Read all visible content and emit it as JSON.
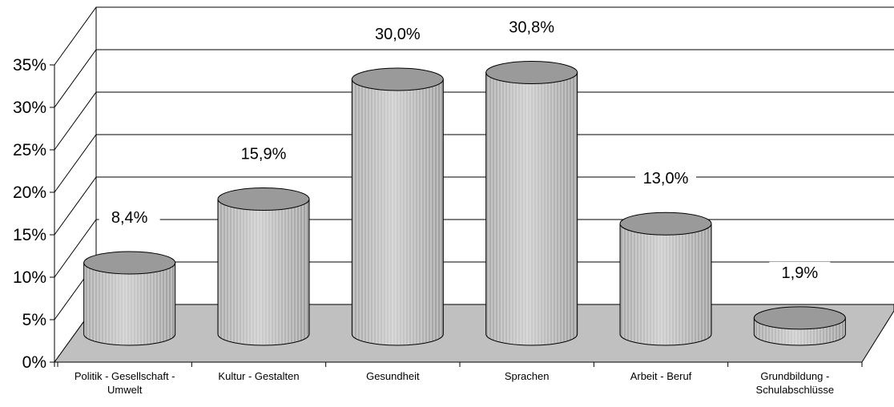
{
  "chart_data": {
    "type": "bar",
    "style": "3d-cylinder",
    "categories": [
      "Politik - Gesellschaft - Umwelt",
      "Kultur - Gestalten",
      "Gesundheit",
      "Sprachen",
      "Arbeit - Beruf",
      "Grundbildung - Schulabschlüsse"
    ],
    "category_label_lines": [
      [
        "Politik - Gesellschaft -",
        "Umwelt"
      ],
      [
        "Kultur - Gestalten"
      ],
      [
        "Gesundheit"
      ],
      [
        "Sprachen"
      ],
      [
        "Arbeit - Beruf"
      ],
      [
        "Grundbildung -",
        "Schulabschlüsse"
      ]
    ],
    "values": [
      8.4,
      15.9,
      30.0,
      30.8,
      13.0,
      1.9
    ],
    "data_labels": [
      "8,4%",
      "15,9%",
      "30,0%",
      "30,8%",
      "13,0%",
      "1,9%"
    ],
    "yticks": [
      "0%",
      "5%",
      "10%",
      "15%",
      "20%",
      "25%",
      "30%",
      "35%"
    ],
    "ylim": [
      0,
      35
    ],
    "title": "",
    "xlabel": "",
    "ylabel": "",
    "grid": true,
    "legend": "none",
    "colors": {
      "bar_side": "#c2c2c2",
      "bar_stripe": "#d6d6d6",
      "bar_top": "#9a9a9a",
      "floor": "#c0c0c0",
      "outline": "#000000",
      "gridline": "#000000"
    }
  }
}
